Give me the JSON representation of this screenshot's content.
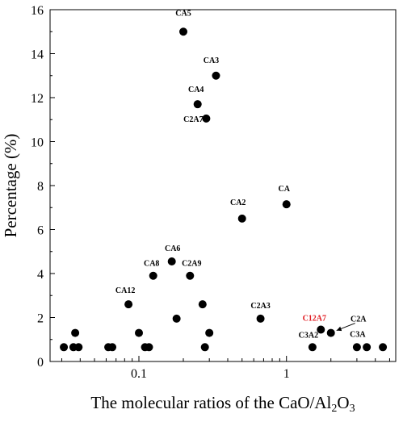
{
  "chart_data": {
    "type": "scatter",
    "x_scale": "log",
    "xlim": [
      0.025,
      5.5
    ],
    "ylim": [
      0,
      16
    ],
    "x_ticks": [
      {
        "value": 0.1,
        "label": "0.1"
      },
      {
        "value": 1,
        "label": "1"
      }
    ],
    "y_ticks": [
      0,
      2,
      4,
      6,
      8,
      10,
      12,
      14,
      16
    ],
    "xlabel": {
      "main": "The molecular ratios of the CaO/Al",
      "sub": "2",
      "end": "O",
      "sub2": "3"
    },
    "ylabel": "Percentage (%)",
    "grid": false,
    "marker_color": "#000000",
    "highlight_color": "#e0191f",
    "points": [
      {
        "x": 0.031,
        "y": 0.65
      },
      {
        "x": 0.036,
        "y": 0.65
      },
      {
        "x": 0.037,
        "y": 1.3
      },
      {
        "x": 0.039,
        "y": 0.65
      },
      {
        "x": 0.062,
        "y": 0.65
      },
      {
        "x": 0.066,
        "y": 0.65
      },
      {
        "x": 0.085,
        "y": 2.6,
        "label": "CA12"
      },
      {
        "x": 0.1,
        "y": 1.3
      },
      {
        "x": 0.11,
        "y": 0.65
      },
      {
        "x": 0.117,
        "y": 0.65
      },
      {
        "x": 0.125,
        "y": 3.9,
        "label": "CA8"
      },
      {
        "x": 0.167,
        "y": 4.55,
        "label": "CA6"
      },
      {
        "x": 0.18,
        "y": 1.95
      },
      {
        "x": 0.2,
        "y": 15.0,
        "label": "CA5"
      },
      {
        "x": 0.222,
        "y": 3.9,
        "label": "C2A9"
      },
      {
        "x": 0.25,
        "y": 11.7,
        "label": "CA4"
      },
      {
        "x": 0.27,
        "y": 2.6
      },
      {
        "x": 0.28,
        "y": 0.65
      },
      {
        "x": 0.286,
        "y": 11.05,
        "label": "C2A7"
      },
      {
        "x": 0.3,
        "y": 1.3
      },
      {
        "x": 0.333,
        "y": 13.0,
        "label": "CA3"
      },
      {
        "x": 0.5,
        "y": 6.5,
        "label": "CA2"
      },
      {
        "x": 0.667,
        "y": 1.95,
        "label": "C2A3"
      },
      {
        "x": 1.0,
        "y": 7.15,
        "label": "CA"
      },
      {
        "x": 1.5,
        "y": 0.65,
        "label": "C3A2"
      },
      {
        "x": 1.71,
        "y": 1.45,
        "label": "C12A7",
        "highlight": true
      },
      {
        "x": 2.0,
        "y": 1.3,
        "label": "C2A"
      },
      {
        "x": 3.0,
        "y": 0.65,
        "label": "C3A"
      },
      {
        "x": 3.5,
        "y": 0.65
      },
      {
        "x": 4.5,
        "y": 0.65
      }
    ]
  }
}
